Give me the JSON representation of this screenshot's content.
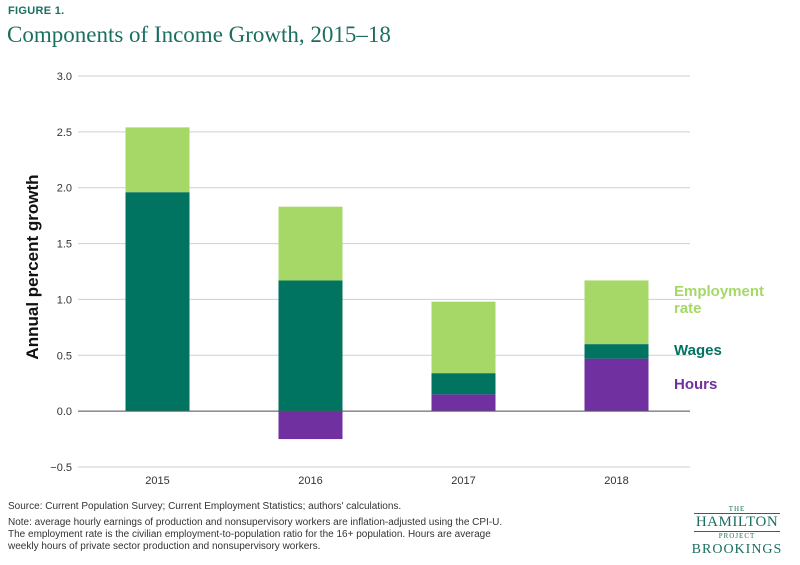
{
  "figure": {
    "label": "FIGURE 1.",
    "title": "Components of Income Growth, 2015–18"
  },
  "chart_data": {
    "type": "bar",
    "stacked": true,
    "title": "Components of Income Growth, 2015–18",
    "xlabel": "",
    "ylabel": "Annual percent growth",
    "ylim": [
      -0.5,
      3.0
    ],
    "yticks": [
      "−0.5",
      "0.0",
      "0.5",
      "1.0",
      "1.5",
      "2.0",
      "2.5",
      "3.0"
    ],
    "ytick_values": [
      -0.5,
      0.0,
      0.5,
      1.0,
      1.5,
      2.0,
      2.5,
      3.0
    ],
    "grid": true,
    "legend_placement": "right of last bar",
    "categories": [
      "2015",
      "2016",
      "2017",
      "2018"
    ],
    "series": [
      {
        "name": "Hours",
        "color": "#7030a0",
        "values": [
          0.0,
          -0.25,
          0.15,
          0.47
        ]
      },
      {
        "name": "Wages",
        "color": "#007361",
        "values": [
          1.96,
          1.17,
          0.19,
          0.13
        ]
      },
      {
        "name": "Employment rate",
        "color": "#a5d867",
        "values": [
          0.58,
          0.66,
          0.64,
          0.57
        ]
      }
    ],
    "legend": {
      "employment_line1": "Employment",
      "employment_line2": "rate",
      "wages": "Wages",
      "hours": "Hours"
    }
  },
  "footer": {
    "source": "Source: Current Population Survey; Current Employment Statistics; authors' calculations.",
    "note_line1": "Note: average hourly earnings of production and nonsupervisory workers are inflation-adjusted using the CPI-U.",
    "note_line2": "The employment rate is the civilian employment-to-population ratio for the 16+ population. Hours are average",
    "note_line3": "weekly hours of private sector production and nonsupervisory workers."
  },
  "logo": {
    "the": "THE",
    "hamilton": "HAMILTON",
    "project": "PROJECT",
    "brookings": "BROOKINGS"
  }
}
